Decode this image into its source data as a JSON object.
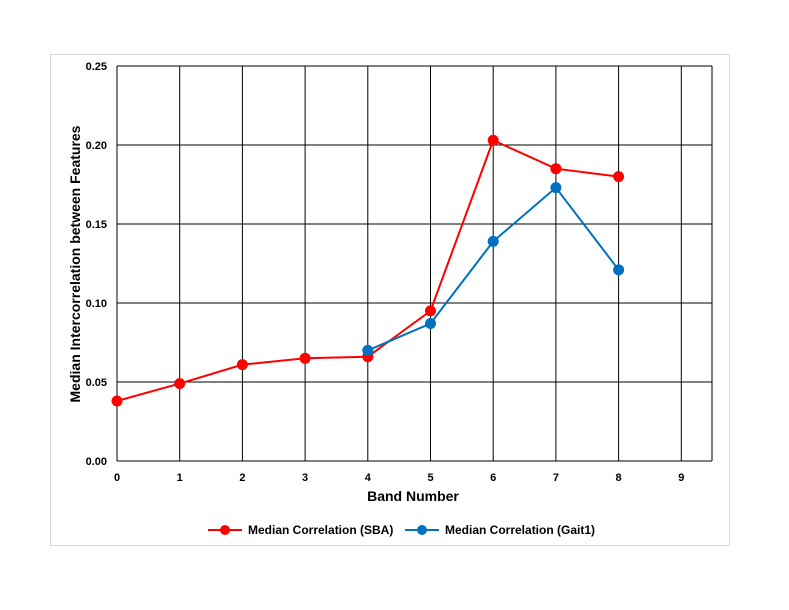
{
  "chart_data": {
    "type": "line",
    "xlabel": "Band Number",
    "ylabel": "Median Intercorrelation between Features",
    "xlim": [
      0,
      9.5
    ],
    "ylim": [
      0,
      0.25
    ],
    "x_ticks": [
      "0",
      "1",
      "2",
      "3",
      "4",
      "5",
      "6",
      "7",
      "8",
      "9"
    ],
    "y_ticks": [
      "0.00",
      "0.05",
      "0.10",
      "0.15",
      "0.20",
      "0.25"
    ],
    "grid": true,
    "legend_position": "bottom",
    "series": [
      {
        "name": "Median Correlation (SBA)",
        "color": "#ff0000",
        "x": [
          0,
          1,
          2,
          3,
          4,
          5,
          6,
          7,
          8
        ],
        "y": [
          0.038,
          0.049,
          0.061,
          0.065,
          0.066,
          0.095,
          0.203,
          0.185,
          0.18
        ]
      },
      {
        "name": "Median Correlation (Gait1)",
        "color": "#0070c0",
        "x": [
          4,
          5,
          6,
          7,
          8
        ],
        "y": [
          0.07,
          0.087,
          0.139,
          0.173,
          0.121
        ]
      }
    ]
  }
}
